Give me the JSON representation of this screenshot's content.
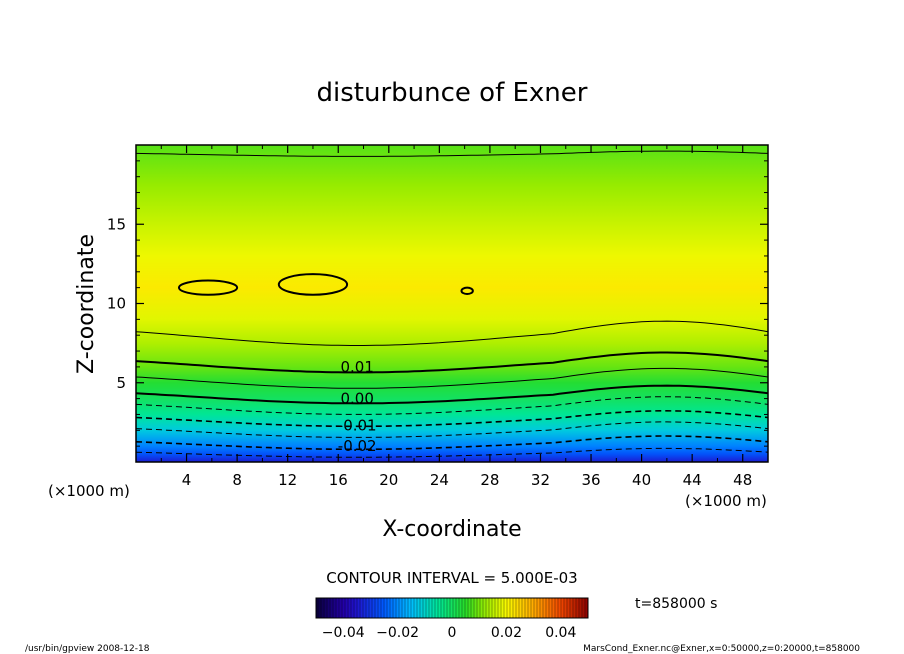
{
  "chart_data": {
    "type": "heatmap",
    "title": "disturbunce of Exner",
    "xlabel": "X-coordinate",
    "ylabel": "Z-coordinate",
    "x_unit_left": "(×1000 m)",
    "x_unit_right": "(×1000 m)",
    "xlim": [
      0,
      50
    ],
    "ylim": [
      0,
      20
    ],
    "x_ticks": [
      4,
      8,
      12,
      16,
      20,
      24,
      28,
      32,
      36,
      40,
      44,
      48
    ],
    "y_ticks": [
      5,
      10,
      15
    ],
    "contour_interval_label": "CONTOUR INTERVAL = 5.000E-03",
    "contour_labels": [
      {
        "value": "0.01",
        "x": 17.5,
        "z": 6.0
      },
      {
        "value": "0.00",
        "x": 17.5,
        "z": 4.0
      },
      {
        "value": "-0.01",
        "x": 17.5,
        "z": 2.3
      },
      {
        "value": "-0.02",
        "x": 17.5,
        "z": 1.0
      }
    ],
    "field_levels": [
      {
        "z": 0.0,
        "value": -0.034
      },
      {
        "z": 0.5,
        "value": -0.026
      },
      {
        "z": 1.0,
        "value": -0.021
      },
      {
        "z": 2.0,
        "value": -0.012
      },
      {
        "z": 3.0,
        "value": -0.005
      },
      {
        "z": 4.0,
        "value": 0.0
      },
      {
        "z": 5.0,
        "value": 0.004
      },
      {
        "z": 6.0,
        "value": 0.009
      },
      {
        "z": 7.5,
        "value": 0.014
      },
      {
        "z": 9.0,
        "value": 0.018
      },
      {
        "z": 11.0,
        "value": 0.022
      },
      {
        "z": 13.0,
        "value": 0.019
      },
      {
        "z": 15.0,
        "value": 0.016
      },
      {
        "z": 17.5,
        "value": 0.012
      },
      {
        "z": 20.0,
        "value": 0.008
      }
    ],
    "colorbar": {
      "range": [
        -0.05,
        0.05
      ],
      "tick_labels": [
        "−0.04",
        "−0.02",
        "0",
        "0.02",
        "0.04"
      ],
      "tick_values": [
        -0.04,
        -0.02,
        0,
        0.02,
        0.04
      ]
    },
    "time_label": "t=858000 s"
  },
  "footer": {
    "left": "/usr/bin/gpview  2008-12-18",
    "right": "MarsCond_Exner.nc@Exner,x=0:50000,z=0:20000,t=858000"
  },
  "colors": {
    "frame": "#000000",
    "background": "#ffffff"
  }
}
